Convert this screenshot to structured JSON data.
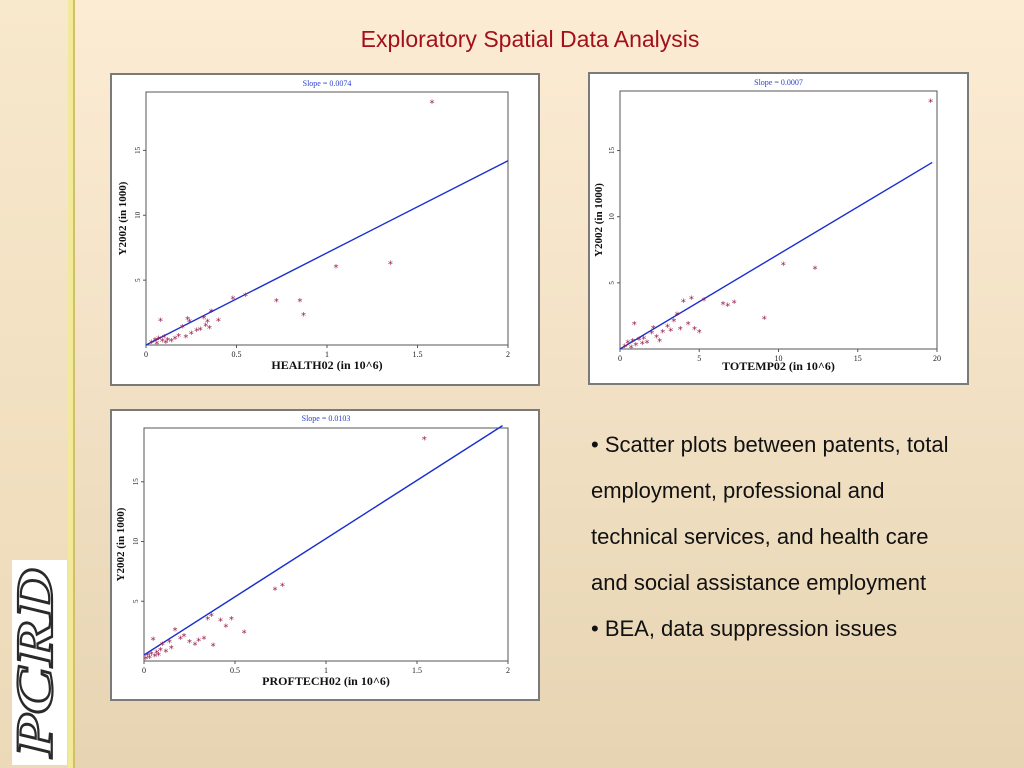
{
  "slide": {
    "title": "Exploratory Spatial Data Analysis",
    "logo_text": "PCRD",
    "bullets": [
      "• Scatter plots between patents, total employment, professional and technical services, and health care and social assistance employment",
      "• BEA, data suppression issues"
    ]
  },
  "colors": {
    "title": "#a3101a",
    "regression_line": "#1a2fd0",
    "points": "#9b1b4b",
    "slope_text": "#2a3fcc"
  },
  "chart_data": [
    {
      "type": "scatter",
      "slope_label": "Slope = 0.0074",
      "xlabel": "HEALTH02 (in 10^6)",
      "ylabel": "Y2002 (in 1000)",
      "xlim": [
        0,
        2
      ],
      "ylim": [
        0,
        19.5
      ],
      "xticks": [
        0,
        0.5,
        1,
        1.5,
        2
      ],
      "xtick_labels": [
        "0",
        "0.5",
        "1",
        "1.5",
        "2"
      ],
      "yticks": [
        5,
        10,
        15
      ],
      "ytick_labels": [
        "5",
        "10",
        "15"
      ],
      "fit_line": [
        [
          0,
          0.0
        ],
        [
          2,
          14.2
        ]
      ],
      "points": [
        [
          0.03,
          0.2
        ],
        [
          0.05,
          0.4
        ],
        [
          0.06,
          0.1
        ],
        [
          0.07,
          0.5
        ],
        [
          0.08,
          1.9
        ],
        [
          0.09,
          0.3
        ],
        [
          0.1,
          0.6
        ],
        [
          0.11,
          0.2
        ],
        [
          0.12,
          0.4
        ],
        [
          0.14,
          0.3
        ],
        [
          0.16,
          0.5
        ],
        [
          0.18,
          0.7
        ],
        [
          0.2,
          1.4
        ],
        [
          0.22,
          0.6
        ],
        [
          0.23,
          2.0
        ],
        [
          0.24,
          1.8
        ],
        [
          0.25,
          0.9
        ],
        [
          0.28,
          1.1
        ],
        [
          0.3,
          1.2
        ],
        [
          0.32,
          2.1
        ],
        [
          0.33,
          1.5
        ],
        [
          0.34,
          1.8
        ],
        [
          0.35,
          1.3
        ],
        [
          0.36,
          2.6
        ],
        [
          0.4,
          1.9
        ],
        [
          0.48,
          3.6
        ],
        [
          0.55,
          3.8
        ],
        [
          0.72,
          3.4
        ],
        [
          0.85,
          3.4
        ],
        [
          0.87,
          2.3
        ],
        [
          1.05,
          6.0
        ],
        [
          1.35,
          6.3
        ],
        [
          1.58,
          18.7
        ]
      ]
    },
    {
      "type": "scatter",
      "slope_label": "Slope = 0.0007",
      "xlabel": "TOTEMP02 (in 10^6)",
      "ylabel": "Y2002 (in 1000)",
      "xlim": [
        0,
        20
      ],
      "ylim": [
        0,
        19.5
      ],
      "xticks": [
        0,
        5,
        10,
        15,
        20
      ],
      "xtick_labels": [
        "0",
        "5",
        "10",
        "15",
        "20"
      ],
      "yticks": [
        5,
        10,
        15
      ],
      "ytick_labels": [
        "5",
        "10",
        "15"
      ],
      "fit_line": [
        [
          0,
          0.0
        ],
        [
          19.7,
          14.1
        ]
      ],
      "points": [
        [
          0.3,
          0.2
        ],
        [
          0.5,
          0.5
        ],
        [
          0.7,
          0.1
        ],
        [
          0.8,
          0.6
        ],
        [
          0.9,
          1.9
        ],
        [
          1.0,
          0.3
        ],
        [
          1.2,
          0.7
        ],
        [
          1.4,
          0.4
        ],
        [
          1.5,
          0.8
        ],
        [
          1.7,
          0.5
        ],
        [
          2.0,
          1.2
        ],
        [
          2.1,
          1.6
        ],
        [
          2.3,
          0.9
        ],
        [
          2.5,
          0.6
        ],
        [
          2.7,
          1.3
        ],
        [
          3.0,
          1.7
        ],
        [
          3.2,
          1.4
        ],
        [
          3.4,
          2.1
        ],
        [
          3.6,
          2.6
        ],
        [
          3.8,
          1.5
        ],
        [
          4.0,
          3.6
        ],
        [
          4.3,
          1.9
        ],
        [
          4.5,
          3.8
        ],
        [
          4.7,
          1.5
        ],
        [
          5.0,
          1.3
        ],
        [
          5.3,
          3.7
        ],
        [
          6.5,
          3.4
        ],
        [
          6.8,
          3.3
        ],
        [
          7.2,
          3.5
        ],
        [
          9.1,
          2.3
        ],
        [
          10.3,
          6.4
        ],
        [
          12.3,
          6.1
        ],
        [
          19.6,
          18.7
        ]
      ]
    },
    {
      "type": "scatter",
      "slope_label": "Slope = 0.0103",
      "xlabel": "PROFTECH02 (in 10^6)",
      "ylabel": "Y2002 (in 1000)",
      "xlim": [
        0,
        2
      ],
      "ylim": [
        0,
        19.5
      ],
      "xticks": [
        0,
        0.5,
        1,
        1.5,
        2
      ],
      "xtick_labels": [
        "0",
        "0.5",
        "1",
        "1.5",
        "2"
      ],
      "yticks": [
        5,
        10,
        15
      ],
      "ytick_labels": [
        "5",
        "10",
        "15"
      ],
      "fit_line": [
        [
          0,
          0.5
        ],
        [
          1.97,
          19.7
        ]
      ],
      "points": [
        [
          0.01,
          0.2
        ],
        [
          0.02,
          0.5
        ],
        [
          0.03,
          0.3
        ],
        [
          0.04,
          0.6
        ],
        [
          0.05,
          1.8
        ],
        [
          0.06,
          0.4
        ],
        [
          0.07,
          0.7
        ],
        [
          0.08,
          0.5
        ],
        [
          0.09,
          0.9
        ],
        [
          0.1,
          1.4
        ],
        [
          0.12,
          0.8
        ],
        [
          0.14,
          1.6
        ],
        [
          0.15,
          1.1
        ],
        [
          0.17,
          2.6
        ],
        [
          0.2,
          1.9
        ],
        [
          0.22,
          2.1
        ],
        [
          0.25,
          1.6
        ],
        [
          0.28,
          1.4
        ],
        [
          0.3,
          1.7
        ],
        [
          0.33,
          1.9
        ],
        [
          0.35,
          3.5
        ],
        [
          0.37,
          3.8
        ],
        [
          0.38,
          1.3
        ],
        [
          0.42,
          3.4
        ],
        [
          0.45,
          2.9
        ],
        [
          0.48,
          3.5
        ],
        [
          0.55,
          2.4
        ],
        [
          0.72,
          6.0
        ],
        [
          0.76,
          6.3
        ],
        [
          1.54,
          18.6
        ]
      ]
    }
  ]
}
